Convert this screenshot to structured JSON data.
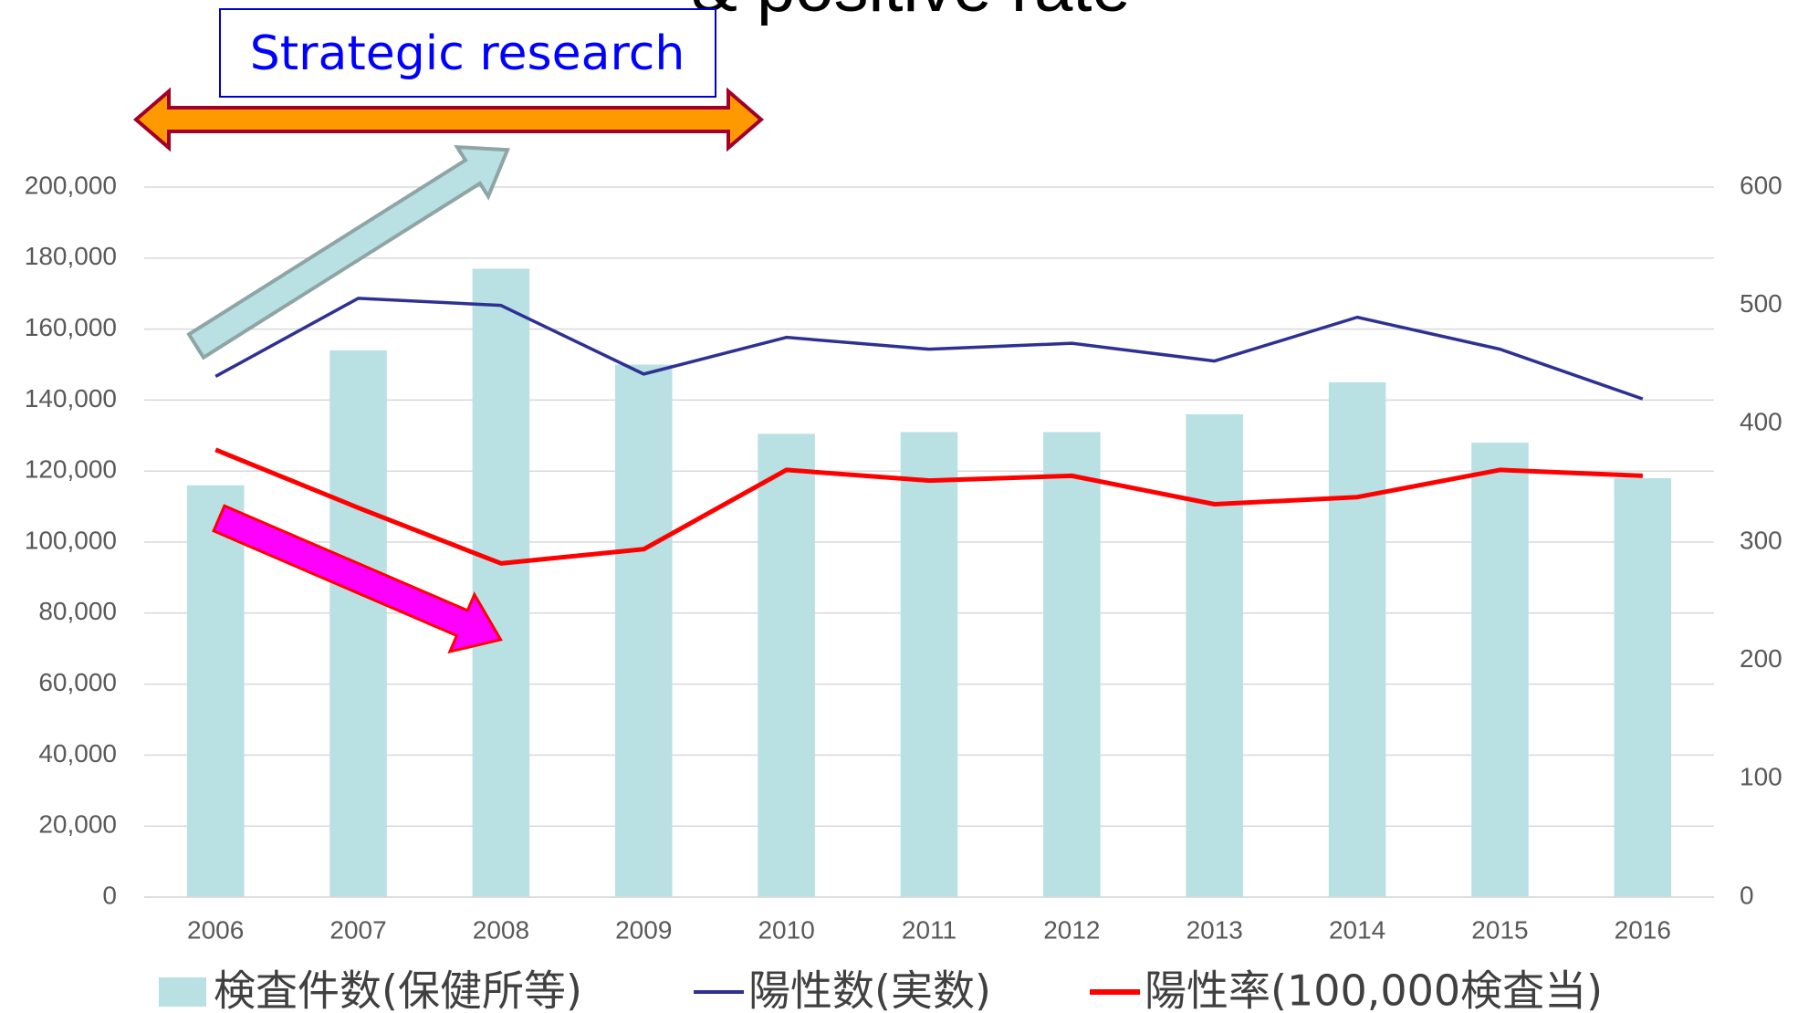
{
  "chart_data": {
    "type": "bar",
    "title": "& positive rate",
    "annotations": [
      "Strategic research"
    ],
    "categories": [
      "2006",
      "2007",
      "2008",
      "2009",
      "2010",
      "2011",
      "2012",
      "2013",
      "2014",
      "2015",
      "2016"
    ],
    "series": [
      {
        "name": "検査件数(保健所等)",
        "type": "bar",
        "color": "#b9e0e2",
        "values": [
          116000,
          154000,
          177000,
          150000,
          130500,
          131000,
          131000,
          136000,
          145000,
          128000,
          118000
        ]
      },
      {
        "name": "陽性数(実数)",
        "type": "line",
        "axis": "y2",
        "color": "#2e3192",
        "values": [
          440,
          506,
          500,
          442,
          473,
          463,
          468,
          453,
          490,
          463,
          421
        ]
      },
      {
        "name": "陽性率(100,000検査当)",
        "type": "line",
        "axis": "y2",
        "color": "#ff0000",
        "values": [
          378,
          329,
          282,
          294,
          361,
          352,
          356,
          332,
          338,
          361,
          356
        ]
      }
    ],
    "ylim": [
      0,
      200000
    ],
    "yticks": [
      0,
      {
        "value": 20000,
        "label": "20,000"
      },
      {
        "value": 40000,
        "label": "40,000"
      },
      {
        "value": 60000,
        "label": "60,000"
      },
      {
        "value": 80000,
        "label": "80,000"
      },
      {
        "value": 100000,
        "label": "100,000"
      },
      {
        "value": 120000,
        "label": "120,000"
      },
      {
        "value": 140000,
        "label": "140,000"
      },
      {
        "value": 160000,
        "label": "160,000"
      },
      {
        "value": 180000,
        "label": "180,000"
      },
      {
        "value": 200000,
        "label": "200,000"
      }
    ],
    "y2lim": [
      0,
      600
    ],
    "y2ticks": [
      0,
      100,
      200,
      300,
      400,
      500,
      600
    ],
    "grid": true
  }
}
